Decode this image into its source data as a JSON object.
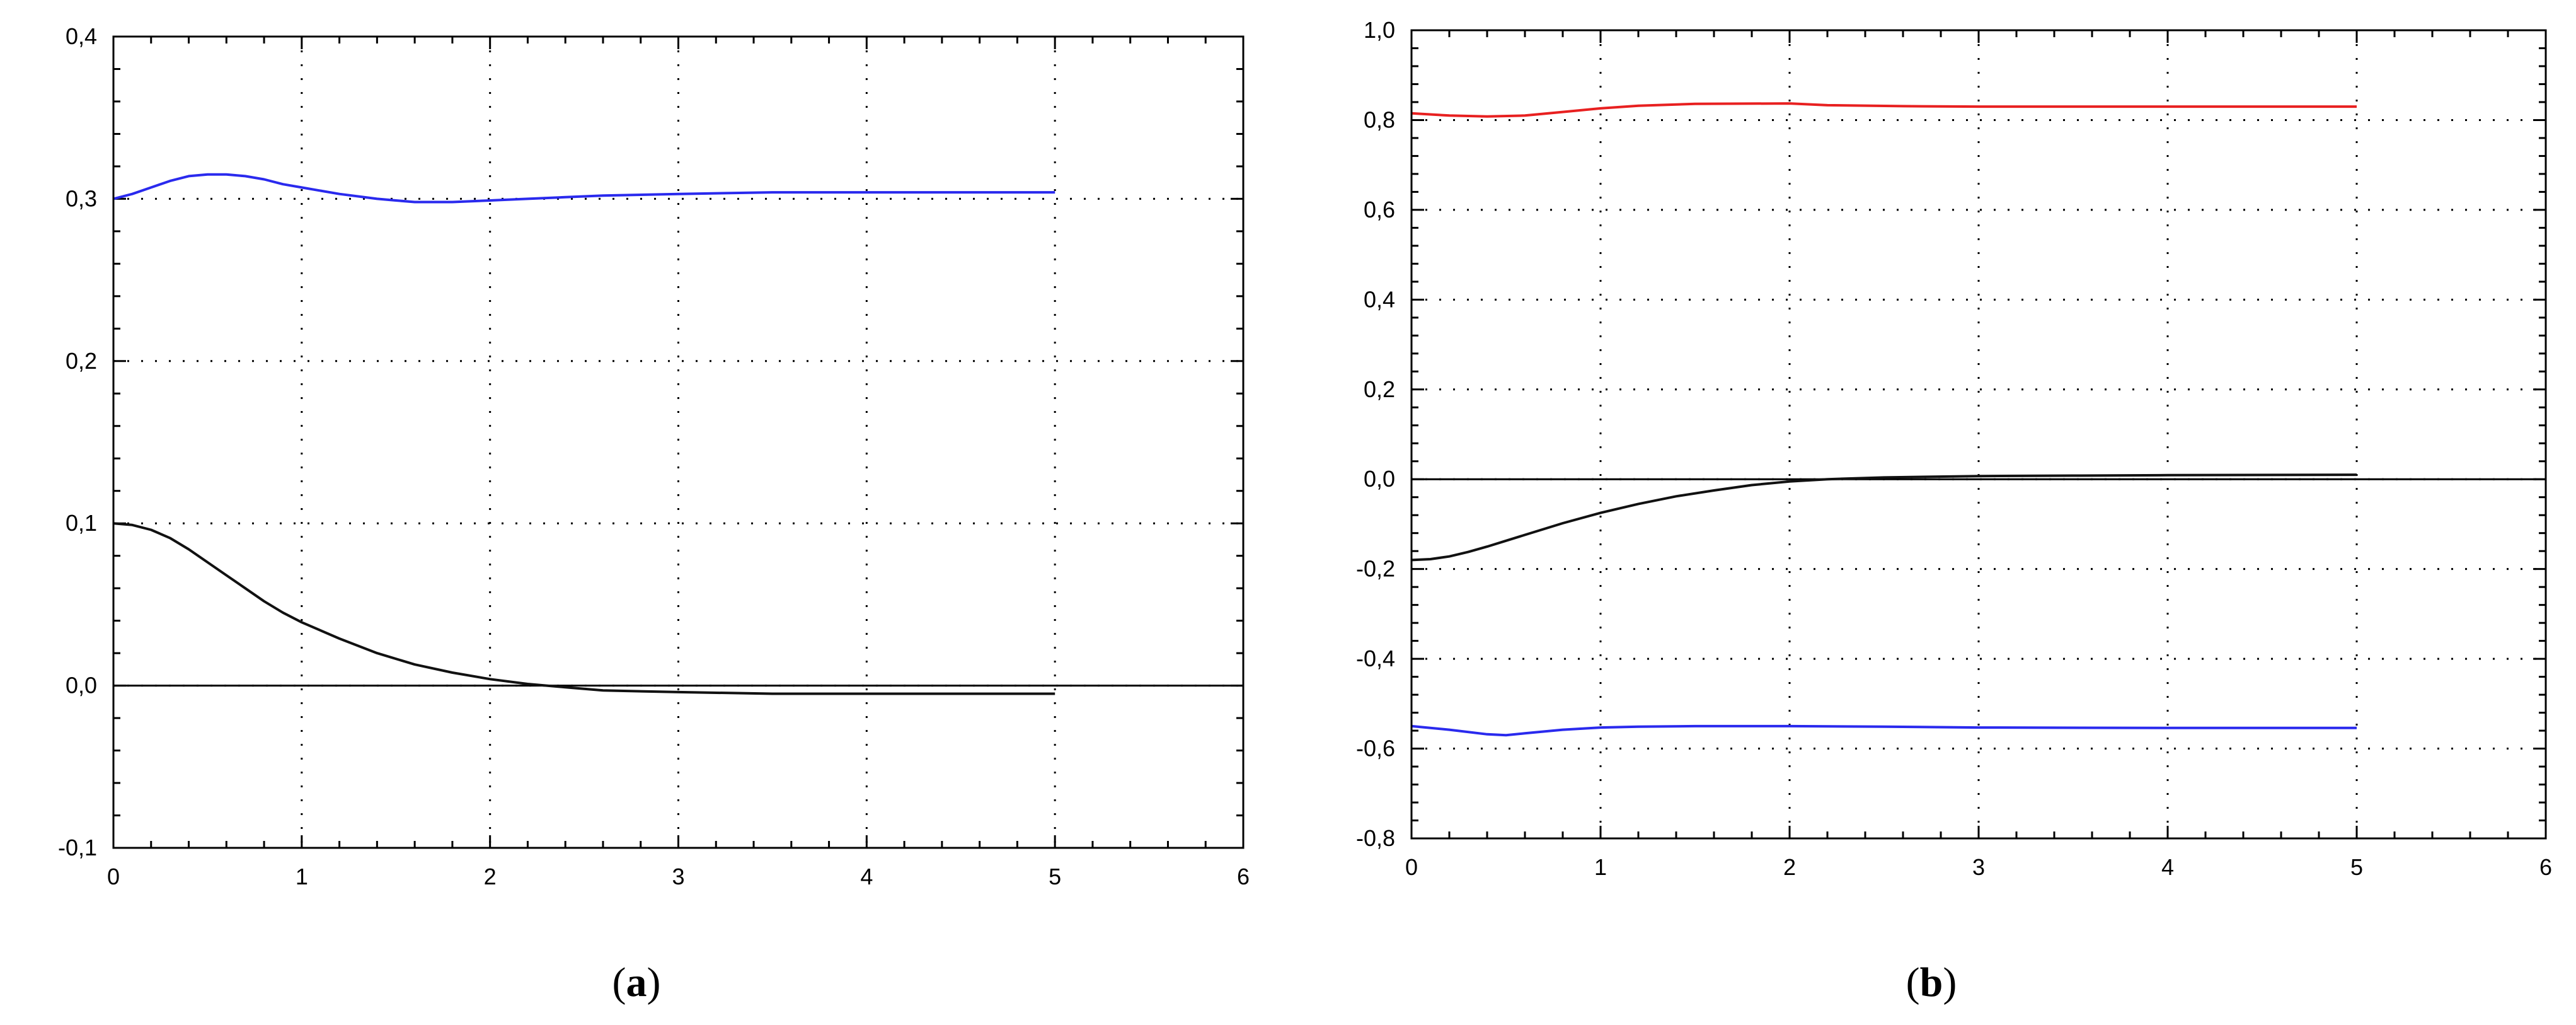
{
  "chart_data": [
    {
      "id": "a",
      "type": "line",
      "caption": {
        "open": "(",
        "letter": "a",
        "close": ")"
      },
      "xlim": [
        0,
        6
      ],
      "ylim": [
        -0.1,
        0.4
      ],
      "xticks": [
        0,
        1,
        2,
        3,
        4,
        5,
        6
      ],
      "xtick_labels": [
        "0",
        "1",
        "2",
        "3",
        "4",
        "5",
        "6"
      ],
      "yticks": [
        -0.1,
        0.0,
        0.1,
        0.2,
        0.3,
        0.4
      ],
      "ytick_labels": [
        "-0,1",
        "0,0",
        "0,1",
        "0,2",
        "0,3",
        "0,4"
      ],
      "grid": true,
      "zero_line": true,
      "series": [
        {
          "color": "#2a2aee",
          "x": [
            0,
            0.1,
            0.2,
            0.3,
            0.4,
            0.5,
            0.6,
            0.7,
            0.8,
            0.9,
            1.0,
            1.2,
            1.4,
            1.5,
            1.6,
            1.8,
            2.0,
            2.2,
            2.4,
            2.6,
            3.0,
            3.5,
            4.0,
            4.5,
            5.0
          ],
          "y": [
            0.3,
            0.303,
            0.307,
            0.311,
            0.314,
            0.315,
            0.315,
            0.314,
            0.312,
            0.309,
            0.307,
            0.303,
            0.3,
            0.299,
            0.298,
            0.298,
            0.299,
            0.3,
            0.301,
            0.302,
            0.303,
            0.304,
            0.304,
            0.304,
            0.304
          ]
        },
        {
          "color": "#111111",
          "x": [
            0,
            0.1,
            0.2,
            0.3,
            0.4,
            0.5,
            0.6,
            0.7,
            0.8,
            0.9,
            1.0,
            1.2,
            1.4,
            1.6,
            1.8,
            2.0,
            2.2,
            2.4,
            2.6,
            3.0,
            3.5,
            4.0,
            4.5,
            5.0
          ],
          "y": [
            0.1,
            0.099,
            0.096,
            0.091,
            0.084,
            0.076,
            0.068,
            0.06,
            0.052,
            0.045,
            0.039,
            0.029,
            0.02,
            0.013,
            0.008,
            0.004,
            0.001,
            -0.001,
            -0.003,
            -0.004,
            -0.005,
            -0.005,
            -0.005,
            -0.005
          ]
        }
      ]
    },
    {
      "id": "b",
      "type": "line",
      "caption": {
        "open": "(",
        "letter": "b",
        "close": ")"
      },
      "xlim": [
        0,
        6
      ],
      "ylim": [
        -0.8,
        1.0
      ],
      "xticks": [
        0,
        1,
        2,
        3,
        4,
        5,
        6
      ],
      "xtick_labels": [
        "0",
        "1",
        "2",
        "3",
        "4",
        "5",
        "6"
      ],
      "yticks": [
        -0.8,
        -0.6,
        -0.4,
        -0.2,
        0.0,
        0.2,
        0.4,
        0.6,
        0.8,
        1.0
      ],
      "ytick_labels": [
        "-0,8",
        "-0,6",
        "-0,4",
        "-0,2",
        "0,0",
        "0,2",
        "0,4",
        "0,6",
        "0,8",
        "1,0"
      ],
      "grid": true,
      "zero_line": true,
      "series": [
        {
          "color": "#e82020",
          "x": [
            0,
            0.2,
            0.4,
            0.6,
            0.8,
            1.0,
            1.2,
            1.5,
            2.0,
            2.2,
            2.6,
            3.0,
            4.0,
            5.0
          ],
          "y": [
            0.815,
            0.81,
            0.808,
            0.81,
            0.818,
            0.826,
            0.832,
            0.836,
            0.837,
            0.833,
            0.831,
            0.83,
            0.83,
            0.83
          ]
        },
        {
          "color": "#111111",
          "x": [
            0,
            0.1,
            0.2,
            0.3,
            0.4,
            0.5,
            0.6,
            0.8,
            1.0,
            1.2,
            1.4,
            1.6,
            1.8,
            2.0,
            2.2,
            2.5,
            3.0,
            3.5,
            4.0,
            5.0
          ],
          "y": [
            -0.18,
            -0.178,
            -0.172,
            -0.162,
            -0.15,
            -0.137,
            -0.124,
            -0.098,
            -0.075,
            -0.055,
            -0.038,
            -0.025,
            -0.013,
            -0.005,
            0.0,
            0.004,
            0.007,
            0.008,
            0.009,
            0.01
          ]
        },
        {
          "color": "#2a2aee",
          "x": [
            0,
            0.2,
            0.4,
            0.5,
            0.6,
            0.8,
            1.0,
            1.2,
            1.5,
            2.0,
            2.5,
            3.0,
            4.0,
            5.0
          ],
          "y": [
            -0.55,
            -0.558,
            -0.568,
            -0.57,
            -0.566,
            -0.558,
            -0.553,
            -0.551,
            -0.55,
            -0.55,
            -0.551,
            -0.553,
            -0.554,
            -0.554
          ]
        }
      ]
    }
  ]
}
